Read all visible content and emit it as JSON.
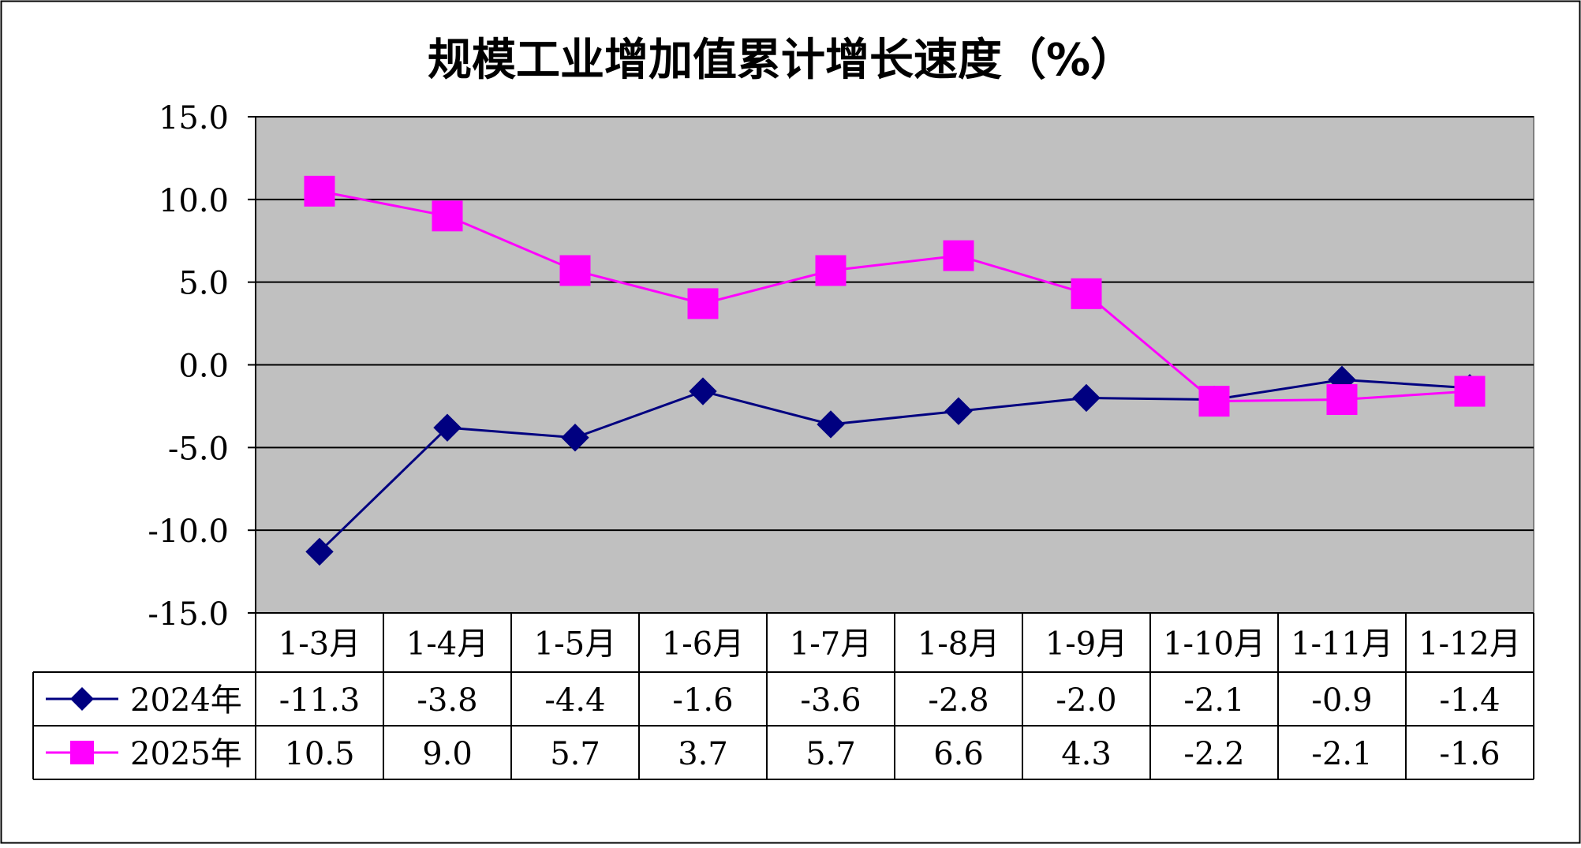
{
  "chart_data": {
    "type": "line",
    "title": "规模工业增加值累计增长速度（%）",
    "categories": [
      "1-3月",
      "1-4月",
      "1-5月",
      "1-6月",
      "1-7月",
      "1-8月",
      "1-9月",
      "1-10月",
      "1-11月",
      "1-12月"
    ],
    "series": [
      {
        "name": "2024年",
        "values": [
          -11.3,
          -3.8,
          -4.4,
          -1.6,
          -3.6,
          -2.8,
          -2.0,
          -2.1,
          -0.9,
          -1.4
        ],
        "labels": [
          "-11.3",
          "-3.8",
          "-4.4",
          "-1.6",
          "-3.6",
          "-2.8",
          "-2.0",
          "-2.1",
          "-0.9",
          "-1.4"
        ],
        "color": "#000080",
        "marker": "diamond"
      },
      {
        "name": "2025年",
        "values": [
          10.5,
          9.0,
          5.7,
          3.7,
          5.7,
          6.6,
          4.3,
          -2.2,
          -2.1,
          -1.6
        ],
        "labels": [
          "10.5",
          "9.0",
          "5.7",
          "3.7",
          "5.7",
          "6.6",
          "4.3",
          "-2.2",
          "-2.1",
          "-1.6"
        ],
        "color": "#ff00ff",
        "marker": "square"
      }
    ],
    "ylim": [
      -15,
      15
    ],
    "yticks": [
      15,
      10,
      5,
      0,
      -5,
      -10,
      -15
    ],
    "ytick_labels": [
      "15.0",
      "10.0",
      "5.0",
      "0.0",
      "-5.0",
      "-10.0",
      "-15.0"
    ],
    "grid": true,
    "plot_background": "#c0c0c0",
    "legend": "data-table"
  }
}
